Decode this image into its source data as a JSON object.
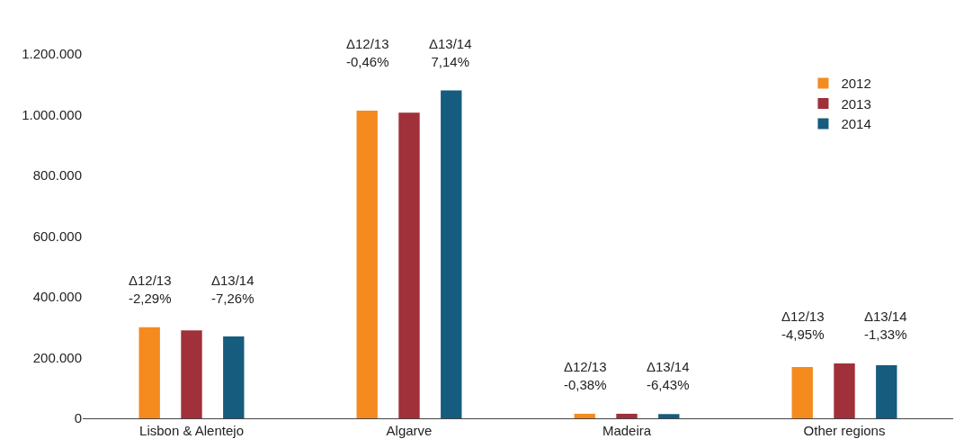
{
  "chart_data": {
    "type": "bar",
    "categories": [
      "Lisbon & Alentejo",
      "Algarve",
      "Madeira",
      "Other regions"
    ],
    "series": [
      {
        "name": "2012",
        "color": "#f58a1f",
        "values": [
          300000,
          1013000,
          15000,
          169000
        ]
      },
      {
        "name": "2013",
        "color": "#a0303a",
        "values": [
          290000,
          1007000,
          15000,
          181000
        ]
      },
      {
        "name": "2014",
        "color": "#155c7e",
        "values": [
          270000,
          1080000,
          14000,
          175000
        ]
      }
    ],
    "ylim": [
      0,
      1200000
    ],
    "yticks": [
      0,
      {
        "value": 200000,
        "label": "200.000"
      },
      {
        "value": 400000,
        "label": "400.000"
      },
      {
        "value": 600000,
        "label": "600.000"
      },
      {
        "value": 800000,
        "label": "800.000"
      },
      {
        "value": 1000000,
        "label": "1.000.000"
      },
      {
        "value": 1200000,
        "label": "1.200.000"
      }
    ],
    "annotations": [
      "Δ12/13\n-2,29%",
      "Δ13/14\n-7,26%",
      "Δ12/13\n-0,46%",
      "Δ13/14\n7,14%",
      "Δ12/13\n-0,38%",
      "Δ13/14\n-6,43%",
      "Δ12/13\n-4,95%",
      "Δ13/14\n-1,33%"
    ],
    "legend": "top right"
  }
}
